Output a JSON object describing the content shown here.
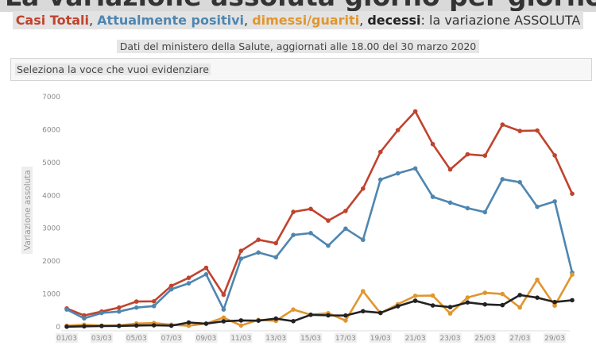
{
  "header": {
    "title": "La variazione assoluta giorno per giorno",
    "legend": [
      {
        "text": "Casi Totali",
        "color": "#c0432d"
      },
      {
        "text": ", ",
        "color": "#333333"
      },
      {
        "text": "Attualmente positivi",
        "color": "#4f86b0"
      },
      {
        "text": ", ",
        "color": "#333333"
      },
      {
        "text": "dimessi/guariti",
        "color": "#e0962f"
      },
      {
        "text": ", ",
        "color": "#333333"
      },
      {
        "text": "decessi",
        "color": "#222222"
      },
      {
        "text": ": la variazione ASSOLUTA",
        "color": "#333333"
      }
    ],
    "note": "Dati del ministero della Salute, aggiornati alle 18.00 del 30 marzo 2020",
    "selector_placeholder": "Seleziona la voce che vuoi evidenziare"
  },
  "chart_data": {
    "type": "line",
    "ylabel": "Variazione assoluta",
    "ylim": [
      0,
      7000
    ],
    "yticks": [
      0,
      1000,
      2000,
      3000,
      4000,
      5000,
      6000,
      7000
    ],
    "x": [
      "01/03",
      "02/03",
      "03/03",
      "04/03",
      "05/03",
      "06/03",
      "07/03",
      "08/03",
      "09/03",
      "10/03",
      "11/03",
      "12/03",
      "13/03",
      "14/03",
      "15/03",
      "16/03",
      "17/03",
      "18/03",
      "19/03",
      "20/03",
      "21/03",
      "22/03",
      "23/03",
      "24/03",
      "25/03",
      "26/03",
      "27/03",
      "28/03",
      "29/03",
      "30/03"
    ],
    "xticks": [
      "01/03",
      "03/03",
      "05/03",
      "07/03",
      "09/03",
      "11/03",
      "13/03",
      "15/03",
      "17/03",
      "19/03",
      "21/03",
      "23/03",
      "25/03",
      "27/03",
      "29/03"
    ],
    "series": [
      {
        "name": "Casi Totali",
        "color": "#c0432d",
        "values": [
          561,
          347,
          466,
          587,
          769,
          778,
          1247,
          1492,
          1797,
          977,
          2313,
          2651,
          2547,
          3497,
          3590,
          3233,
          3526,
          4207,
          5322,
          5986,
          6557,
          5560,
          4789,
          5249,
          5210,
          6153,
          5959,
          5974,
          5217,
          4050
        ]
      },
      {
        "name": "Attualmente positivi",
        "color": "#4f86b0",
        "values": [
          528,
          258,
          423,
          466,
          587,
          632,
          1145,
          1326,
          1598,
          529,
          2076,
          2262,
          2116,
          2795,
          2853,
          2470,
          2989,
          2648,
          4480,
          4670,
          4821,
          3957,
          3780,
          3612,
          3491,
          4492,
          4401,
          3651,
          3815,
          1648
        ]
      },
      {
        "name": "dimessi/guariti",
        "color": "#e0962f",
        "values": [
          37,
          66,
          33,
          42,
          102,
          116,
          65,
          33,
          102,
          280,
          41,
          213,
          181,
          527,
          369,
          414,
          192,
          1084,
          415,
          689,
          943,
          952,
          408,
          894,
          1036,
          999,
          589,
          1434,
          646,
          1590
        ]
      },
      {
        "name": "decessi",
        "color": "#222222",
        "values": [
          5,
          18,
          27,
          28,
          41,
          49,
          36,
          133,
          97,
          168,
          196,
          189,
          250,
          175,
          368,
          349,
          345,
          475,
          427,
          627,
          793,
          651,
          601,
          743,
          683,
          662,
          969,
          889,
          756,
          812
        ]
      }
    ]
  }
}
